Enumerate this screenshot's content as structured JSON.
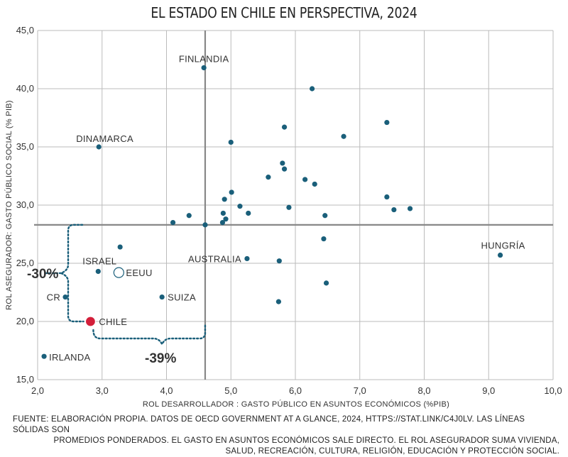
{
  "chart_data": {
    "type": "scatter",
    "title": "EL ESTADO EN CHILE EN PERSPECTIVA, 2024",
    "xlabel": "ROL DESARROLLADOR : GASTO PÚBLICO EN ASUNTOS ECONÓMICOS (%PIB)",
    "ylabel": "ROL ASEGURADOR: GASTO PÚBLICO SOCIAL (% PIB)",
    "xlim": [
      2.0,
      10.0
    ],
    "ylim": [
      15.0,
      45.0
    ],
    "x_ticks": [
      "2,0",
      "3,0",
      "4,0",
      "5,0",
      "6,0",
      "7,0",
      "8,0",
      "9,0",
      "10,0"
    ],
    "x_tick_values": [
      2,
      3,
      4,
      5,
      6,
      7,
      8,
      9,
      10
    ],
    "y_ticks": [
      "15,0",
      "20,0",
      "25,0",
      "30,0",
      "35,0",
      "40,0",
      "45,0"
    ],
    "y_tick_values": [
      15,
      20,
      25,
      30,
      35,
      40,
      45
    ],
    "grid": true,
    "colors": {
      "point": "#1a5f7a",
      "chile": "#d31f3a",
      "dotted": "#1a5f7a",
      "avg_line": "#888888",
      "grid": "#bbbbbb"
    },
    "averages": {
      "x": 4.6,
      "y": 28.3
    },
    "points": [
      {
        "x": 4.58,
        "y": 41.8,
        "label": "FINLANDIA",
        "style": "filled"
      },
      {
        "x": 2.95,
        "y": 35.0,
        "label": "DINAMARCA",
        "style": "filled"
      },
      {
        "x": 9.18,
        "y": 25.7,
        "label": "HUNGRÍA",
        "style": "filled"
      },
      {
        "x": 5.25,
        "y": 25.4,
        "label": "AUSTRALIA",
        "style": "filled"
      },
      {
        "x": 2.94,
        "y": 24.3,
        "label": "ISRAEL",
        "style": "filled"
      },
      {
        "x": 3.26,
        "y": 24.2,
        "label": "EEUU",
        "style": "hollow"
      },
      {
        "x": 2.43,
        "y": 22.1,
        "label": "CR",
        "style": "filled"
      },
      {
        "x": 3.93,
        "y": 22.1,
        "label": "SUIZA",
        "style": "filled"
      },
      {
        "x": 2.82,
        "y": 20.0,
        "label": "CHILE",
        "style": "chile"
      },
      {
        "x": 2.1,
        "y": 17.0,
        "label": "IRLANDA",
        "style": "filled"
      },
      {
        "x": 6.26,
        "y": 40.0,
        "label": "",
        "style": "filled"
      },
      {
        "x": 5.83,
        "y": 36.7,
        "label": "",
        "style": "filled"
      },
      {
        "x": 7.42,
        "y": 37.1,
        "label": "",
        "style": "filled"
      },
      {
        "x": 6.75,
        "y": 35.9,
        "label": "",
        "style": "filled"
      },
      {
        "x": 5.0,
        "y": 35.4,
        "label": "",
        "style": "filled"
      },
      {
        "x": 5.8,
        "y": 33.6,
        "label": "",
        "style": "filled"
      },
      {
        "x": 5.83,
        "y": 33.1,
        "label": "",
        "style": "filled"
      },
      {
        "x": 5.58,
        "y": 32.4,
        "label": "",
        "style": "filled"
      },
      {
        "x": 6.15,
        "y": 32.2,
        "label": "",
        "style": "filled"
      },
      {
        "x": 6.3,
        "y": 31.8,
        "label": "",
        "style": "filled"
      },
      {
        "x": 5.01,
        "y": 31.1,
        "label": "",
        "style": "filled"
      },
      {
        "x": 4.9,
        "y": 30.5,
        "label": "",
        "style": "filled"
      },
      {
        "x": 7.42,
        "y": 30.7,
        "label": "",
        "style": "filled"
      },
      {
        "x": 5.14,
        "y": 29.9,
        "label": "",
        "style": "filled"
      },
      {
        "x": 5.9,
        "y": 29.8,
        "label": "",
        "style": "filled"
      },
      {
        "x": 7.53,
        "y": 29.6,
        "label": "",
        "style": "filled"
      },
      {
        "x": 7.78,
        "y": 29.7,
        "label": "",
        "style": "filled"
      },
      {
        "x": 4.88,
        "y": 29.3,
        "label": "",
        "style": "filled"
      },
      {
        "x": 5.27,
        "y": 29.3,
        "label": "",
        "style": "filled"
      },
      {
        "x": 6.46,
        "y": 29.1,
        "label": "",
        "style": "filled"
      },
      {
        "x": 4.35,
        "y": 29.1,
        "label": "",
        "style": "filled"
      },
      {
        "x": 4.92,
        "y": 28.8,
        "label": "",
        "style": "filled"
      },
      {
        "x": 4.1,
        "y": 28.5,
        "label": "",
        "style": "filled"
      },
      {
        "x": 4.87,
        "y": 28.5,
        "label": "",
        "style": "filled"
      },
      {
        "x": 4.6,
        "y": 28.3,
        "label": "",
        "style": "filled"
      },
      {
        "x": 6.44,
        "y": 27.1,
        "label": "",
        "style": "filled"
      },
      {
        "x": 3.28,
        "y": 26.4,
        "label": "",
        "style": "filled"
      },
      {
        "x": 5.75,
        "y": 25.2,
        "label": "",
        "style": "filled"
      },
      {
        "x": 6.48,
        "y": 23.3,
        "label": "",
        "style": "filled"
      },
      {
        "x": 5.74,
        "y": 21.7,
        "label": "",
        "style": "filled"
      }
    ],
    "annotations": [
      {
        "text": "-30%",
        "axis": "y"
      },
      {
        "text": "-39%",
        "axis": "x"
      }
    ]
  },
  "source": {
    "line1": "FUENTE: ELABORACIÓN PROPIA. DATOS DE OECD GOVERNMENT AT A GLANCE, 2024, HTTPS://STAT.LINK/C4J0LV. LAS LÍNEAS SÓLIDAS SON",
    "line2": "PROMEDIOS PONDERADOS. EL GASTO EN ASUNTOS  ECONÓMICOS SALE DIRECTO. EL ROL ASEGURADOR SUMA VIVIENDA,",
    "line3": "SALUD, RECREACIÓN, CULTURA, RELIGIÓN, EDUCACIÓN Y PROTECCIÓN SOCIAL."
  }
}
